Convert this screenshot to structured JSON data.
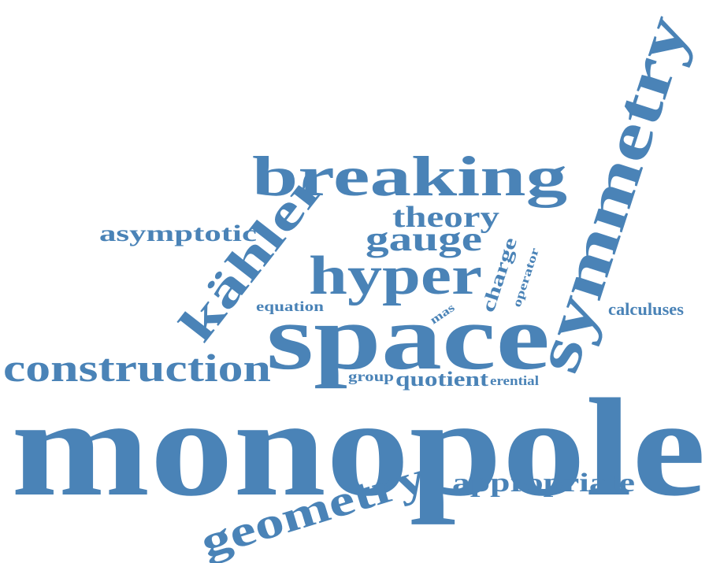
{
  "word_cloud": {
    "color": "#4a83b7",
    "words": {
      "monopole": "monopole",
      "space": "space",
      "symmetry": "symmetry",
      "breaking": "breaking",
      "kahler": "kähler",
      "hyper": "hyper",
      "construction": "construction",
      "geometry": "geometry",
      "theory": "theory",
      "gauge": "gauge",
      "asymptotic": "asymptotic",
      "appropriate": "appropriate",
      "quotient": "quotient",
      "charge": "charge",
      "operator": "operator",
      "calculuses": "calculuses",
      "equation": "equation",
      "mas": "mas",
      "group": "group",
      "erential": "erential"
    }
  }
}
